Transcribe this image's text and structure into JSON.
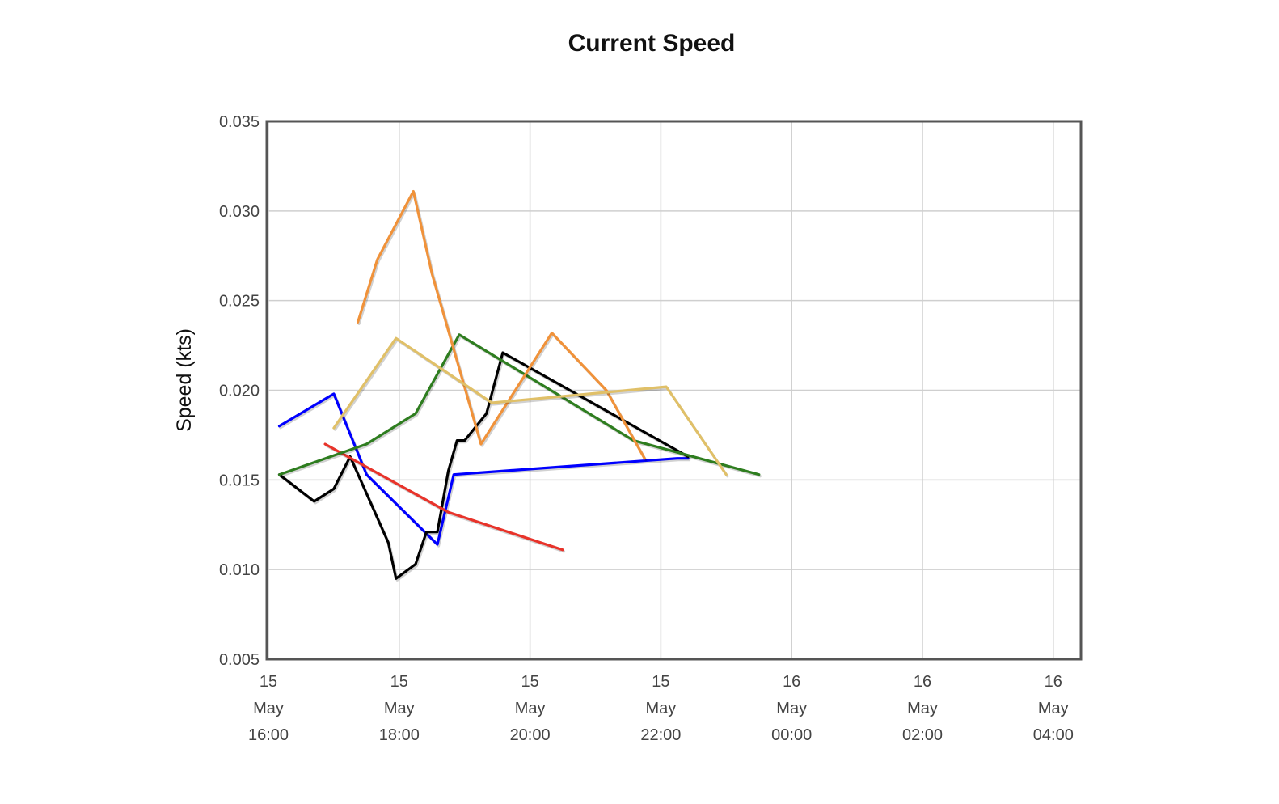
{
  "chart_data": {
    "type": "line",
    "title": "Current Speed",
    "xlabel": "",
    "ylabel": "Speed (kts)",
    "xlim": [
      "2024-05-15 16:00",
      "2024-05-16 04:15"
    ],
    "ylim": [
      0.005,
      0.035
    ],
    "yticks": [
      0.005,
      0.01,
      0.015,
      0.02,
      0.025,
      0.03,
      0.035
    ],
    "ytick_labels": [
      "0.005",
      "0.010",
      "0.015",
      "0.020",
      "0.025",
      "0.030",
      "0.035"
    ],
    "xticks": [
      {
        "t": "15 May 16:00",
        "lines": [
          "15",
          "May",
          "16:00"
        ]
      },
      {
        "t": "15 May 18:00",
        "lines": [
          "15",
          "May",
          "18:00"
        ]
      },
      {
        "t": "15 May 20:00",
        "lines": [
          "15",
          "May",
          "20:00"
        ]
      },
      {
        "t": "15 May 22:00",
        "lines": [
          "15",
          "May",
          "22:00"
        ]
      },
      {
        "t": "16 May 00:00",
        "lines": [
          "16",
          "May",
          "00:00"
        ]
      },
      {
        "t": "16 May 02:00",
        "lines": [
          "16",
          "May",
          "02:00"
        ]
      },
      {
        "t": "16 May 04:00",
        "lines": [
          "16",
          "May",
          "04:00"
        ]
      }
    ],
    "grid": true,
    "legend": "none",
    "series": [
      {
        "color": "#0000ff",
        "x": [
          "15 May 16:10",
          "15 May 17:00",
          "15 May 17:30",
          "15 May 18:35",
          "15 May 18:50",
          "15 May 22:15",
          "15 May 22:25"
        ],
        "y": [
          0.018,
          0.0198,
          0.0153,
          0.0114,
          0.0153,
          0.0162,
          0.0162
        ]
      },
      {
        "color": "#000000",
        "x": [
          "15 May 16:10",
          "15 May 16:42",
          "15 May 17:00",
          "15 May 17:15",
          "15 May 17:50",
          "15 May 17:57",
          "15 May 18:15",
          "15 May 18:25",
          "15 May 18:35",
          "15 May 18:45",
          "15 May 18:53",
          "15 May 19:00",
          "15 May 19:20",
          "15 May 19:35",
          "15 May 22:25"
        ],
        "y": [
          0.0153,
          0.0138,
          0.0145,
          0.0163,
          0.0115,
          0.0095,
          0.0103,
          0.0121,
          0.0121,
          0.0155,
          0.0172,
          0.0172,
          0.0187,
          0.0221,
          0.0163
        ]
      },
      {
        "color": "#e8332a",
        "x": [
          "15 May 16:52",
          "15 May 18:45",
          "15 May 20:30"
        ],
        "y": [
          0.017,
          0.0132,
          0.0111
        ]
      },
      {
        "color": "#2e7d1f",
        "x": [
          "15 May 16:10",
          "15 May 17:30",
          "15 May 18:15",
          "15 May 18:55",
          "15 May 21:35",
          "15 May 23:30"
        ],
        "y": [
          0.0153,
          0.017,
          0.0187,
          0.0231,
          0.0172,
          0.0153
        ]
      },
      {
        "color": "#f0923a",
        "x": [
          "15 May 17:22",
          "15 May 17:40",
          "15 May 18:13",
          "15 May 18:30",
          "15 May 19:15",
          "15 May 20:20",
          "15 May 21:10",
          "15 May 21:45"
        ],
        "y": [
          0.0238,
          0.0273,
          0.0311,
          0.0265,
          0.017,
          0.0232,
          0.02,
          0.0162
        ]
      },
      {
        "color": "#e0c068",
        "x": [
          "15 May 17:00",
          "15 May 17:57",
          "15 May 19:25",
          "15 May 22:05",
          "15 May 23:00"
        ],
        "y": [
          0.0179,
          0.0229,
          0.0193,
          0.0202,
          0.0153
        ]
      }
    ]
  }
}
